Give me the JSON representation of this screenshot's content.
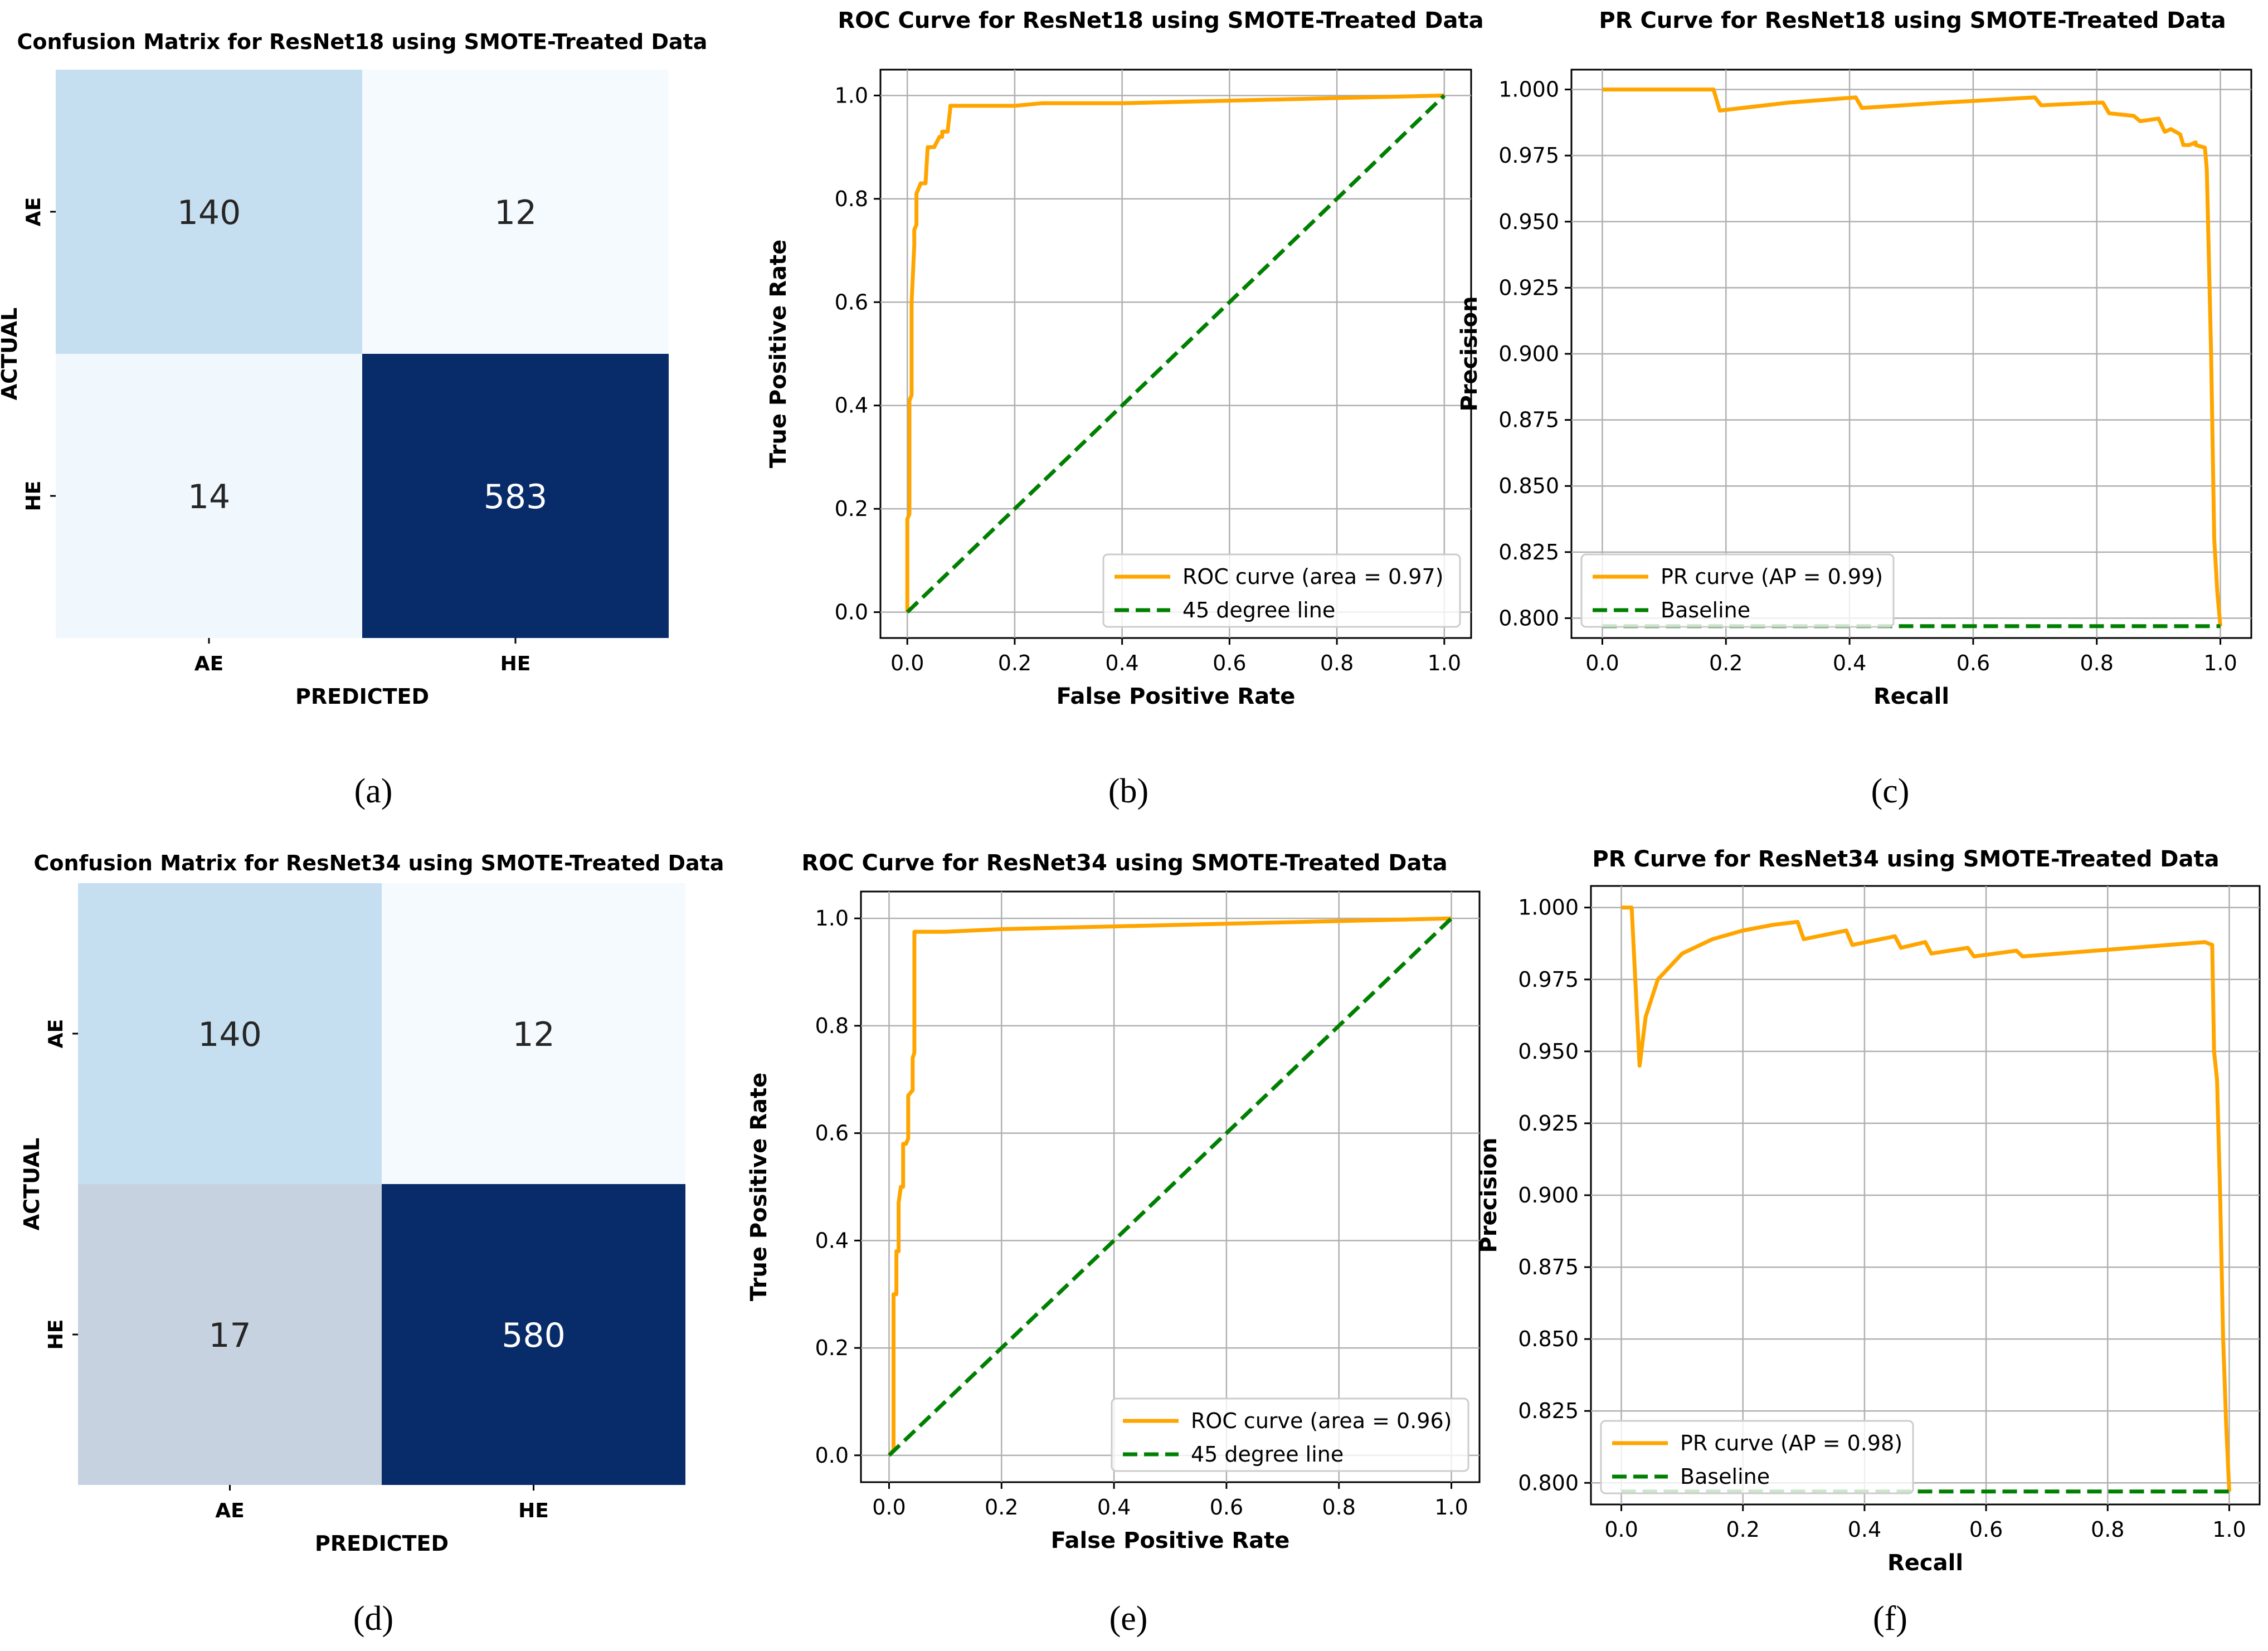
{
  "chart_data": [
    {
      "id": "a",
      "type": "heatmap",
      "title": "Confusion Matrix for ResNet18 using SMOTE-Treated Data",
      "xlabel": "PREDICTED",
      "ylabel": "ACTUAL",
      "x_categories": [
        "AE",
        "HE"
      ],
      "y_categories": [
        "AE",
        "HE"
      ],
      "values": [
        [
          140,
          12
        ],
        [
          14,
          583
        ]
      ],
      "colormap": "Blues",
      "panel_label": "(a)"
    },
    {
      "id": "b",
      "type": "line",
      "title": "ROC Curve for ResNet18 using SMOTE-Treated Data",
      "xlabel": "False Positive Rate",
      "ylabel": "True Positive Rate",
      "xlim": [
        0,
        1
      ],
      "ylim": [
        0,
        1
      ],
      "xticks": [
        "0.0",
        "0.2",
        "0.4",
        "0.6",
        "0.8",
        "1.0"
      ],
      "yticks": [
        "0.0",
        "0.2",
        "0.4",
        "0.6",
        "0.8",
        "1.0"
      ],
      "grid": true,
      "legend_position": "lower-right",
      "series": [
        {
          "name": "ROC curve (area = 0.97)",
          "color": "#ffa500",
          "style": "solid",
          "x": [
            0,
            0,
            0.004,
            0.004,
            0.008,
            0.008,
            0.013,
            0.013,
            0.017,
            0.017,
            0.021,
            0.025,
            0.034,
            0.038,
            0.038,
            0.05,
            0.06,
            0.065,
            0.065,
            0.075,
            0.08,
            0.08,
            0.12,
            0.2,
            0.25,
            0.4,
            0.6,
            0.8,
            1.0
          ],
          "y": [
            0,
            0.18,
            0.19,
            0.41,
            0.42,
            0.6,
            0.71,
            0.74,
            0.75,
            0.81,
            0.82,
            0.83,
            0.83,
            0.9,
            0.9,
            0.9,
            0.92,
            0.92,
            0.93,
            0.93,
            0.975,
            0.98,
            0.98,
            0.98,
            0.985,
            0.985,
            0.99,
            0.995,
            1.0
          ]
        },
        {
          "name": "45 degree line",
          "color": "#008000",
          "style": "dashed",
          "x": [
            0,
            1
          ],
          "y": [
            0,
            1
          ]
        }
      ],
      "panel_label": "(b)"
    },
    {
      "id": "c",
      "type": "line",
      "title": "PR Curve for ResNet18 using SMOTE-Treated Data",
      "xlabel": "Recall",
      "ylabel": "Precision",
      "xlim": [
        0,
        1
      ],
      "ylim": [
        0.8,
        1.0
      ],
      "xticks": [
        "0.0",
        "0.2",
        "0.4",
        "0.6",
        "0.8",
        "1.0"
      ],
      "yticks": [
        "0.800",
        "0.825",
        "0.850",
        "0.875",
        "0.900",
        "0.925",
        "0.950",
        "0.975",
        "1.000"
      ],
      "grid": true,
      "legend_position": "lower-left",
      "series": [
        {
          "name": "PR curve (AP = 0.99)",
          "color": "#ffa500",
          "style": "solid",
          "x": [
            0,
            0.18,
            0.19,
            0.3,
            0.41,
            0.42,
            0.55,
            0.7,
            0.71,
            0.8,
            0.81,
            0.82,
            0.86,
            0.87,
            0.9,
            0.91,
            0.92,
            0.935,
            0.94,
            0.95,
            0.96,
            0.96,
            0.975,
            0.978,
            0.98,
            0.985,
            0.99,
            0.995,
            1.0
          ],
          "y": [
            1.0,
            1.0,
            0.992,
            0.995,
            0.997,
            0.993,
            0.995,
            0.997,
            0.994,
            0.995,
            0.995,
            0.991,
            0.99,
            0.988,
            0.989,
            0.984,
            0.985,
            0.983,
            0.979,
            0.979,
            0.98,
            0.979,
            0.978,
            0.97,
            0.95,
            0.9,
            0.83,
            0.81,
            0.797
          ]
        },
        {
          "name": "Baseline",
          "color": "#008000",
          "style": "dashed",
          "x": [
            0,
            1
          ],
          "y": [
            0.797,
            0.797
          ]
        }
      ],
      "panel_label": "(c)"
    },
    {
      "id": "d",
      "type": "heatmap",
      "title": "Confusion Matrix for ResNet34 using SMOTE-Treated Data",
      "xlabel": "PREDICTED",
      "ylabel": "ACTUAL",
      "x_categories": [
        "AE",
        "HE"
      ],
      "y_categories": [
        "AE",
        "HE"
      ],
      "values": [
        [
          140,
          12
        ],
        [
          17,
          580
        ]
      ],
      "colormap": "Blues",
      "panel_label": "(d)"
    },
    {
      "id": "e",
      "type": "line",
      "title": "ROC Curve for ResNet34 using SMOTE-Treated Data",
      "xlabel": "False Positive Rate",
      "ylabel": "True Positive Rate",
      "xlim": [
        0,
        1
      ],
      "ylim": [
        0,
        1
      ],
      "xticks": [
        "0.0",
        "0.2",
        "0.4",
        "0.6",
        "0.8",
        "1.0"
      ],
      "yticks": [
        "0.0",
        "0.2",
        "0.4",
        "0.6",
        "0.8",
        "1.0"
      ],
      "grid": true,
      "legend_position": "lower-right",
      "series": [
        {
          "name": "ROC curve (area = 0.96)",
          "color": "#ffa500",
          "style": "solid",
          "x": [
            0,
            0.008,
            0.008,
            0.013,
            0.013,
            0.017,
            0.017,
            0.021,
            0.025,
            0.025,
            0.03,
            0.034,
            0.034,
            0.042,
            0.042,
            0.045,
            0.045,
            0.1,
            0.2,
            0.4,
            0.6,
            0.8,
            1.0
          ],
          "y": [
            0,
            0.01,
            0.3,
            0.3,
            0.38,
            0.38,
            0.47,
            0.5,
            0.5,
            0.58,
            0.58,
            0.59,
            0.67,
            0.68,
            0.74,
            0.75,
            0.975,
            0.975,
            0.98,
            0.985,
            0.99,
            0.995,
            1.0
          ]
        },
        {
          "name": "45 degree line",
          "color": "#008000",
          "style": "dashed",
          "x": [
            0,
            1
          ],
          "y": [
            0,
            1
          ]
        }
      ],
      "panel_label": "(e)"
    },
    {
      "id": "f",
      "type": "line",
      "title": "PR Curve for ResNet34 using SMOTE-Treated Data",
      "xlabel": "Recall",
      "ylabel": "Precision",
      "xlim": [
        0,
        1
      ],
      "ylim": [
        0.8,
        1.0
      ],
      "xticks": [
        "0.0",
        "0.2",
        "0.4",
        "0.6",
        "0.8",
        "1.0"
      ],
      "yticks": [
        "0.800",
        "0.825",
        "0.850",
        "0.875",
        "0.900",
        "0.925",
        "0.950",
        "0.975",
        "1.000"
      ],
      "grid": true,
      "legend_position": "lower-left",
      "series": [
        {
          "name": "PR curve (AP = 0.98)",
          "color": "#ffa500",
          "style": "solid",
          "x": [
            0,
            0.017,
            0.03,
            0.04,
            0.06,
            0.1,
            0.15,
            0.2,
            0.25,
            0.29,
            0.3,
            0.37,
            0.38,
            0.45,
            0.46,
            0.5,
            0.51,
            0.57,
            0.58,
            0.65,
            0.66,
            0.96,
            0.972,
            0.975,
            0.98,
            0.985,
            0.99,
            0.995,
            1.0
          ],
          "y": [
            1.0,
            1.0,
            0.945,
            0.962,
            0.975,
            0.984,
            0.989,
            0.992,
            0.994,
            0.995,
            0.989,
            0.992,
            0.987,
            0.99,
            0.986,
            0.988,
            0.984,
            0.986,
            0.983,
            0.985,
            0.983,
            0.988,
            0.987,
            0.95,
            0.94,
            0.9,
            0.85,
            0.82,
            0.797
          ]
        },
        {
          "name": "Baseline",
          "color": "#008000",
          "style": "dashed",
          "x": [
            0,
            1
          ],
          "y": [
            0.797,
            0.797
          ]
        }
      ],
      "panel_label": "(f)"
    }
  ]
}
